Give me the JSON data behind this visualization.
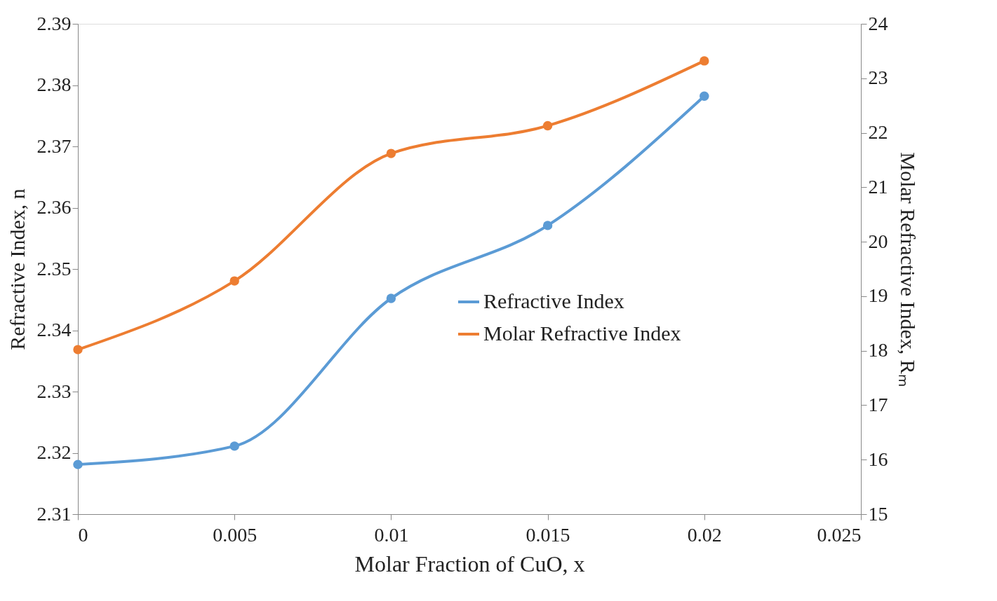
{
  "chart_data": {
    "type": "line",
    "xlabel": "Molar Fraction of CuO, x",
    "ylabel": "Refractive Index, n",
    "y2label": "Molar Refractive Index, Rₘ",
    "x": [
      0,
      0.005,
      0.01,
      0.015,
      0.02
    ],
    "series": [
      {
        "name": "Refractive Index",
        "color": "#5b9bd5",
        "values": [
          2.3181,
          2.3211,
          2.3452,
          2.3571,
          2.3782
        ]
      },
      {
        "name": "Molar Refractive Index",
        "color": "#ed7d31",
        "axis": "y2",
        "values": [
          18.02,
          19.28,
          21.62,
          22.13,
          23.32
        ]
      }
    ],
    "xlim": [
      0,
      0.025
    ],
    "xticks": [
      0,
      0.005,
      0.01,
      0.015,
      0.02,
      0.025
    ],
    "ylim": [
      2.31,
      2.39
    ],
    "yticks": [
      2.31,
      2.32,
      2.33,
      2.34,
      2.35,
      2.36,
      2.37,
      2.38,
      2.39
    ],
    "y2lim": [
      15,
      24
    ],
    "y2ticks": [
      15,
      16,
      17,
      18,
      19,
      20,
      21,
      22,
      23,
      24
    ],
    "grid": false,
    "legend": "right",
    "marker": "circle",
    "line_style": "solid"
  }
}
